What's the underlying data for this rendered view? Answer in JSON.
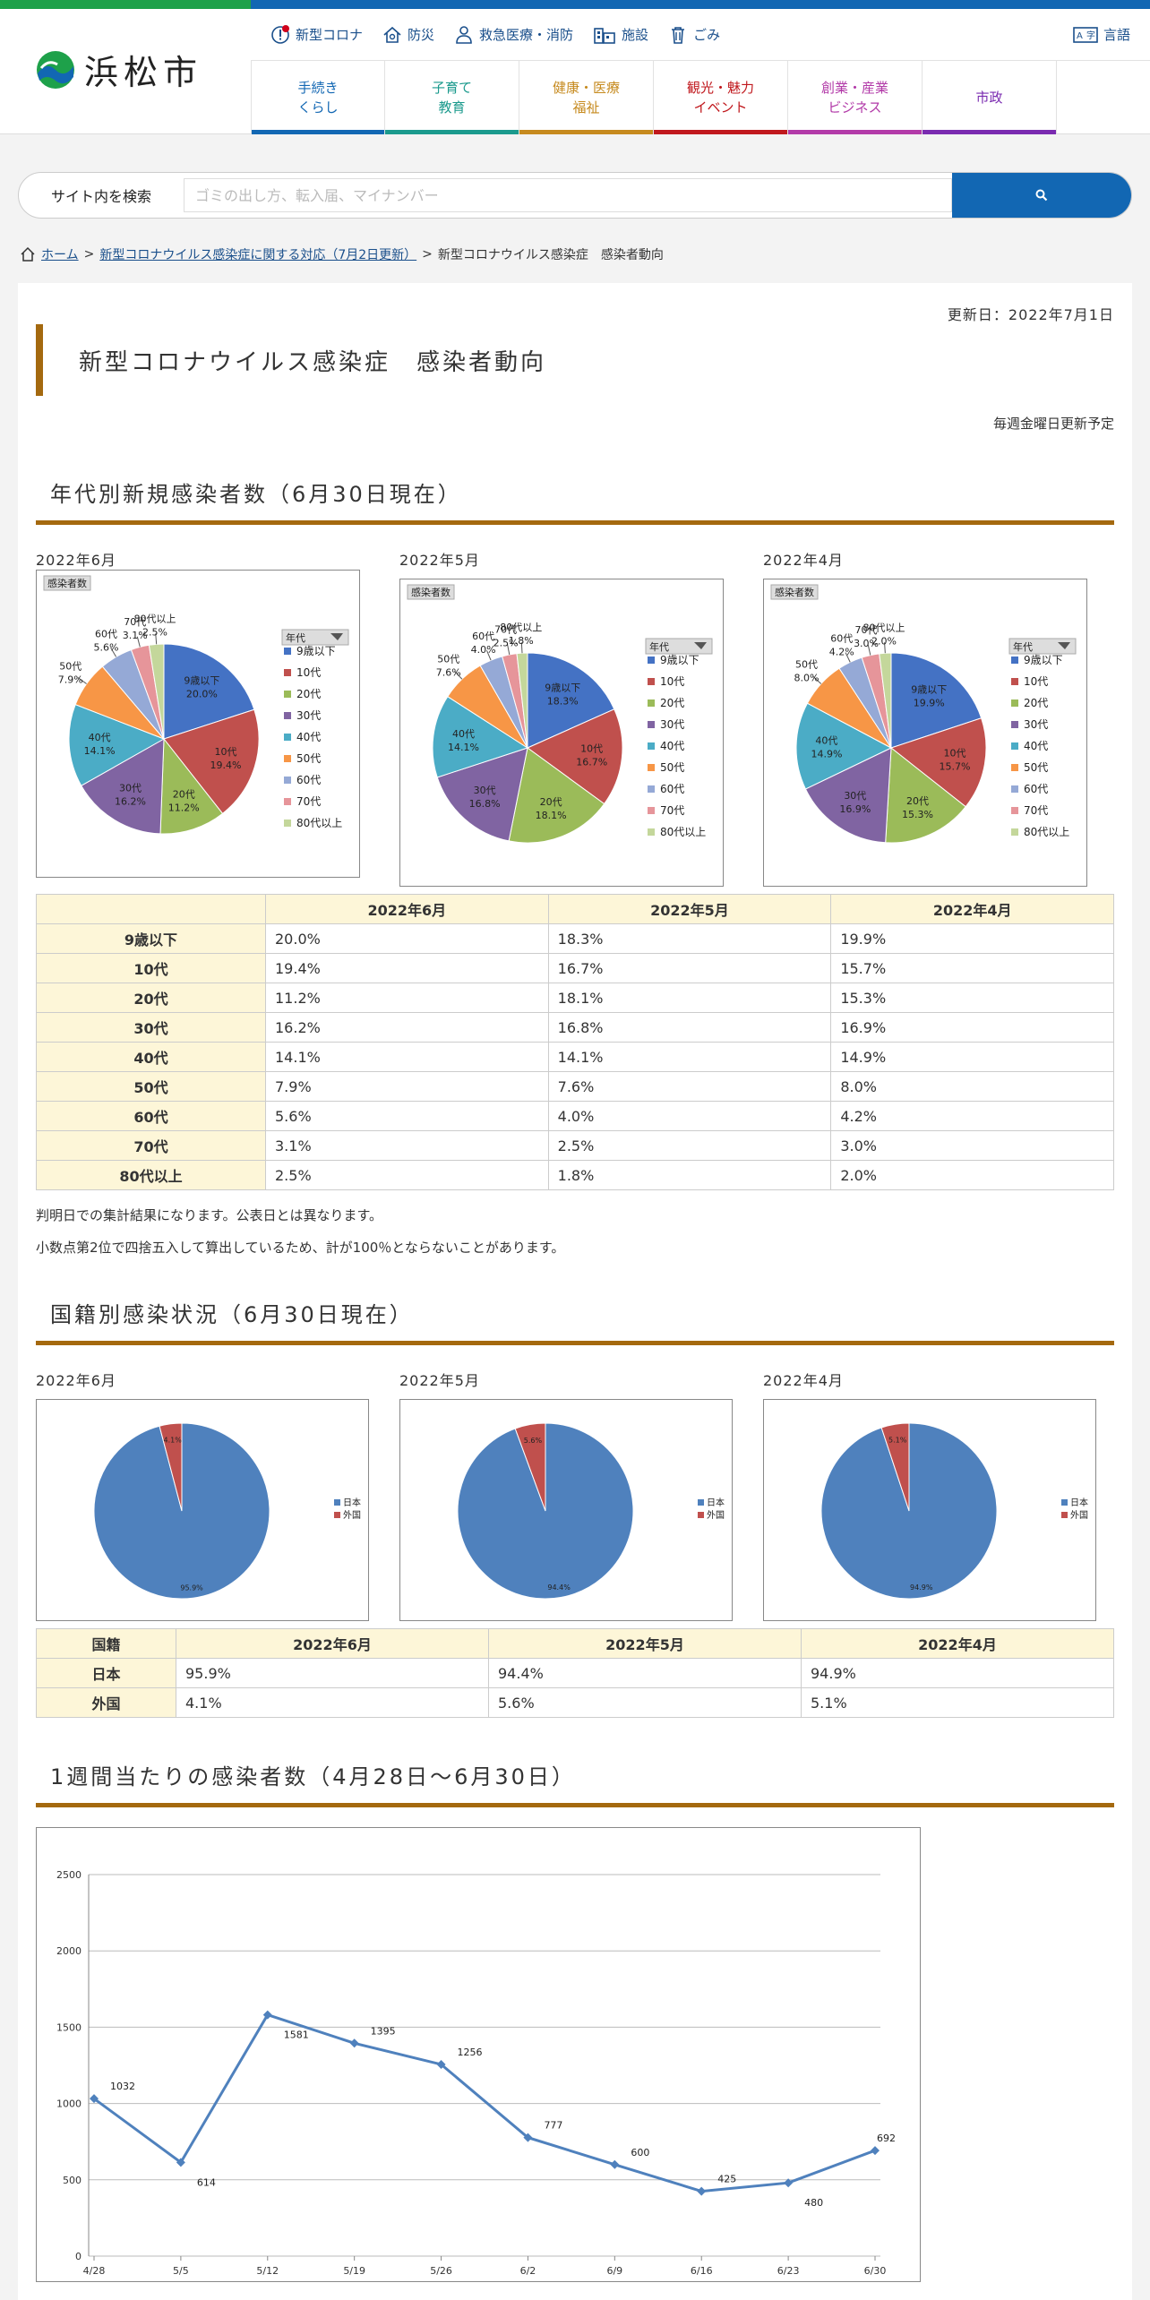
{
  "header": {
    "city_name": "浜松市",
    "util": [
      {
        "label": "新型コロナ",
        "icon": "alert-icon"
      },
      {
        "label": "防災",
        "icon": "home-shield-icon"
      },
      {
        "label": "救急医療・消防",
        "icon": "person-icon"
      },
      {
        "label": "施設",
        "icon": "building-icon"
      },
      {
        "label": "ごみ",
        "icon": "trash-icon"
      }
    ],
    "lang_label": "言語",
    "nav": [
      {
        "label": "手続き\nくらし",
        "color": "#1267b3"
      },
      {
        "label": "子育て\n教育",
        "color": "#1b9a8d"
      },
      {
        "label": "健康・医療\n福祉",
        "color": "#c68a1e"
      },
      {
        "label": "観光・魅力\nイベント",
        "color": "#c0181d"
      },
      {
        "label": "創業・産業\nビジネス",
        "color": "#b23aa8"
      },
      {
        "label": "市政",
        "color": "#7a2bb0"
      }
    ]
  },
  "search": {
    "label": "サイト内を検索",
    "placeholder": "ゴミの出し方、転入届、マイナンバー"
  },
  "breadcrumb": {
    "home": "ホーム",
    "sep": ">",
    "parent": "新型コロナウイルス感染症に関する対応（7月2日更新）",
    "current": "新型コロナウイルス感染症　感染者動向"
  },
  "page": {
    "updated": "更新日：2022年7月1日",
    "title": "新型コロナウイルス感染症　感染者動向",
    "schedule": "毎週金曜日更新予定"
  },
  "section1": {
    "heading": "年代別新規感染者数（6月30日現在）",
    "note1": "判明日での集計結果になります。公表日とは異なります。",
    "note2": "小数点第2位で四捨五入して算出しているため、計が100％とならないことがあります。"
  },
  "section2": {
    "heading": "国籍別感染状況（6月30日現在）"
  },
  "section3": {
    "heading": "1週間当たりの感染者数（4月28日～6月30日）"
  },
  "age_charts": {
    "box_title": "感染者数",
    "legend_title": "年代",
    "categories": [
      "9歳以下",
      "10代",
      "20代",
      "30代",
      "40代",
      "50代",
      "60代",
      "70代",
      "80代以上"
    ],
    "colors": [
      "#4472c4",
      "#c0504d",
      "#9bbb59",
      "#8064a2",
      "#4bacc6",
      "#f79646",
      "#95a9d6",
      "#e6959a",
      "#c4d79b"
    ]
  },
  "age_table": {
    "headers": [
      "",
      "2022年6月",
      "2022年5月",
      "2022年4月"
    ],
    "rows": [
      [
        "9歳以下",
        "20.0%",
        "18.3%",
        "19.9%"
      ],
      [
        "10代",
        "19.4%",
        "16.7%",
        "15.7%"
      ],
      [
        "20代",
        "11.2%",
        "18.1%",
        "15.3%"
      ],
      [
        "30代",
        "16.2%",
        "16.8%",
        "16.9%"
      ],
      [
        "40代",
        "14.1%",
        "14.1%",
        "14.9%"
      ],
      [
        "50代",
        "7.9%",
        "7.6%",
        "8.0%"
      ],
      [
        "60代",
        "5.6%",
        "4.0%",
        "4.2%"
      ],
      [
        "70代",
        "3.1%",
        "2.5%",
        "3.0%"
      ],
      [
        "80代以上",
        "2.5%",
        "1.8%",
        "2.0%"
      ]
    ]
  },
  "nat_charts": {
    "categories": [
      "日本",
      "外国"
    ],
    "colors": [
      "#4f81bd",
      "#c0504d"
    ]
  },
  "nat_table": {
    "headers": [
      "国籍",
      "2022年6月",
      "2022年5月",
      "2022年4月"
    ],
    "rows": [
      [
        "日本",
        "95.9%",
        "94.4%",
        "94.9%"
      ],
      [
        "外国",
        "4.1%",
        "5.6%",
        "5.1%"
      ]
    ]
  },
  "chart_data": [
    {
      "type": "pie",
      "title": "2022年6月",
      "categories": [
        "9歳以下",
        "10代",
        "20代",
        "30代",
        "40代",
        "50代",
        "60代",
        "70代",
        "80代以上"
      ],
      "values": [
        20.0,
        19.4,
        11.2,
        16.2,
        14.1,
        7.9,
        5.6,
        3.1,
        2.5
      ],
      "value_labels": [
        "20.0%",
        "19.4%",
        "11.2%",
        "16.2%",
        "14.1%",
        "7.9%",
        "5.6%",
        "3.1%",
        "2.5%"
      ],
      "legend": "right"
    },
    {
      "type": "pie",
      "title": "2022年5月",
      "categories": [
        "9歳以下",
        "10代",
        "20代",
        "30代",
        "40代",
        "50代",
        "60代",
        "70代",
        "80代以上"
      ],
      "values": [
        18.3,
        16.7,
        18.1,
        16.8,
        14.1,
        7.6,
        4.0,
        2.5,
        1.8
      ],
      "value_labels": [
        "18.3%",
        "16.7%",
        "18.1%",
        "16.8%",
        "14.1%",
        "7.6%",
        "4.0%",
        "2.5%",
        "1.8%"
      ],
      "legend": "right"
    },
    {
      "type": "pie",
      "title": "2022年4月",
      "categories": [
        "9歳以下",
        "10代",
        "20代",
        "30代",
        "40代",
        "50代",
        "60代",
        "70代",
        "80代以上"
      ],
      "values": [
        19.9,
        15.7,
        15.3,
        16.9,
        14.9,
        8.0,
        4.2,
        3.0,
        2.0
      ],
      "value_labels": [
        "19.9%",
        "15.7%",
        "15.3%",
        "16.9%",
        "14.9%",
        "8.0%",
        "4.2%",
        "3.0%",
        "2.0%"
      ],
      "legend": "right"
    },
    {
      "type": "pie",
      "title": "2022年6月",
      "categories": [
        "日本",
        "外国"
      ],
      "values": [
        95.9,
        4.1
      ],
      "value_labels": [
        "95.9%",
        "4.1%"
      ],
      "legend": "right"
    },
    {
      "type": "pie",
      "title": "2022年5月",
      "categories": [
        "日本",
        "外国"
      ],
      "values": [
        94.4,
        5.6
      ],
      "value_labels": [
        "94.4%",
        "5.6%"
      ],
      "legend": "right"
    },
    {
      "type": "pie",
      "title": "2022年4月",
      "categories": [
        "日本",
        "外国"
      ],
      "values": [
        94.9,
        5.1
      ],
      "value_labels": [
        "94.9%",
        "5.1%"
      ],
      "legend": "right"
    },
    {
      "type": "line",
      "categories": [
        "4/28",
        "5/5",
        "5/12",
        "5/19",
        "5/26",
        "6/2",
        "6/9",
        "6/16",
        "6/23",
        "6/30"
      ],
      "values": [
        1032,
        614,
        1581,
        1395,
        1256,
        777,
        600,
        425,
        480,
        692
      ],
      "ylim": [
        0,
        2500
      ],
      "yticks": [
        0,
        500,
        1000,
        1500,
        2000,
        2500
      ],
      "grid": true,
      "color": "#4f81bd"
    }
  ]
}
